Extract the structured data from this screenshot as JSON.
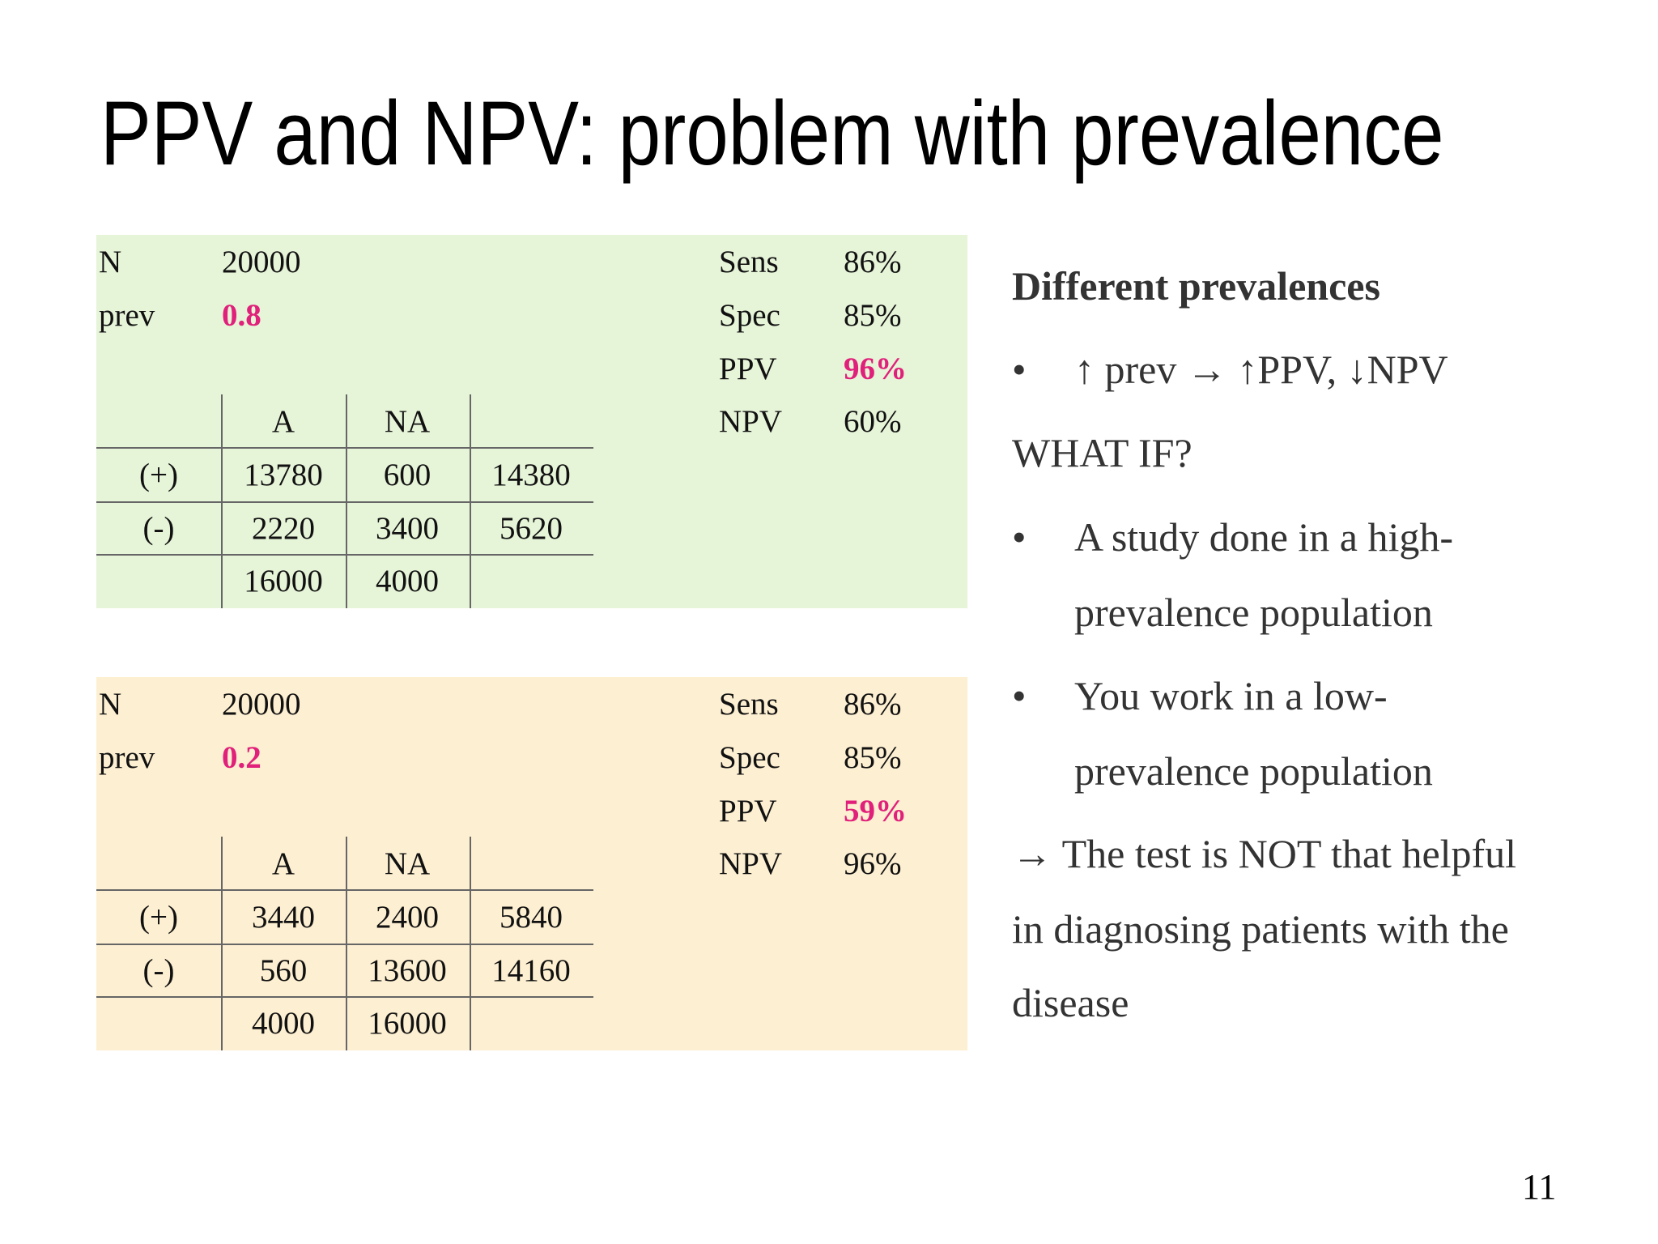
{
  "title": "PPV and NPV: problem with prevalence",
  "panels": [
    {
      "n_label": "N",
      "n": "20000",
      "prev_label": "prev",
      "prev": "0.8",
      "stats": [
        {
          "label": "Sens",
          "value": "86%"
        },
        {
          "label": "Spec",
          "value": "85%"
        },
        {
          "label": "PPV",
          "value": "96%"
        },
        {
          "label": "NPV",
          "value": "60%"
        }
      ],
      "table": {
        "header": [
          "A",
          "NA"
        ],
        "rows": [
          [
            "(+)",
            "13780",
            "600",
            "14380"
          ],
          [
            "(-)",
            "2220",
            "3400",
            "5620"
          ]
        ],
        "totals": [
          "16000",
          "4000"
        ]
      }
    },
    {
      "n_label": "N",
      "n": "20000",
      "prev_label": "prev",
      "prev": "0.2",
      "stats": [
        {
          "label": "Sens",
          "value": "86%"
        },
        {
          "label": "Spec",
          "value": "85%"
        },
        {
          "label": "PPV",
          "value": "59%"
        },
        {
          "label": "NPV",
          "value": "96%"
        }
      ],
      "table": {
        "header": [
          "A",
          "NA"
        ],
        "rows": [
          [
            "(+)",
            "3440",
            "2400",
            "5840"
          ],
          [
            "(-)",
            "560",
            "13600",
            "14160"
          ]
        ],
        "totals": [
          "4000",
          "16000"
        ]
      }
    }
  ],
  "notes": {
    "heading": "Different prevalences",
    "bullet1": "↑ prev → ↑PPV, ↓NPV",
    "what_if": "WHAT IF?",
    "bullet2": [
      "A study done in a high-",
      "prevalence population"
    ],
    "bullet3": [
      "You work in a low-",
      "prevalence population"
    ],
    "conclusion": [
      "→ The test is NOT that helpful",
      "in diagnosing patients with the",
      "disease"
    ]
  },
  "page_number": "11"
}
